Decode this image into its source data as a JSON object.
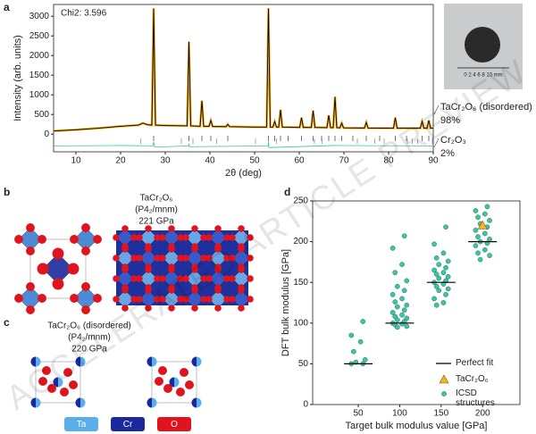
{
  "panel_labels": [
    "a",
    "b",
    "c",
    "d"
  ],
  "watermark": "ACCELERATED ARTICLE PREVIEW",
  "structure_b": {
    "formula": "TaCr₂O₆",
    "space_group": "(P4₂/mnm)",
    "modulus": "221 GPa"
  },
  "structure_c": {
    "formula": "TaCr₂O₆ (disordered)",
    "space_group": "(P4₂/mnm)",
    "modulus": "220 GPa"
  },
  "element_legend": [
    {
      "label": "Ta",
      "color": "#5aaeea"
    },
    {
      "label": "Cr",
      "color": "#1a2a9c"
    },
    {
      "label": "O",
      "color": "#e0141e"
    }
  ],
  "chart_data": [
    {
      "type": "line",
      "annotation": "Chi2: 3.596",
      "xlabel": "2θ (deg)",
      "ylabel": "Intensity (arb. units)",
      "xlim": [
        5,
        90
      ],
      "ylim": [
        -450,
        3300
      ],
      "xticks": [
        10,
        20,
        30,
        40,
        50,
        60,
        70,
        80,
        90
      ],
      "yticks": [
        0,
        500,
        1000,
        1500,
        2000,
        2500,
        3000
      ],
      "series": [
        {
          "color": "#000000",
          "x": [
            5,
            10,
            15,
            20,
            24,
            25,
            26,
            27,
            27.4,
            27.8,
            30,
            34.9,
            35.3,
            35.7,
            37.8,
            38.2,
            38.6,
            39.8,
            40.2,
            40.6,
            43.6,
            44,
            44.4,
            50,
            52.7,
            53.1,
            53.5,
            54.1,
            54.5,
            54.9,
            55.4,
            55.8,
            56.2,
            60.1,
            60.5,
            60.9,
            62.7,
            63.1,
            63.5,
            66.2,
            66.6,
            67,
            67.6,
            68,
            68.4,
            69.1,
            69.5,
            69.9,
            74.6,
            75,
            75.4,
            81.1,
            81.5,
            81.9,
            87.1,
            87.5,
            87.9,
            88.6,
            89,
            89.4,
            90
          ],
          "values": [
            80,
            110,
            150,
            200,
            230,
            280,
            240,
            230,
            3200,
            230,
            220,
            210,
            2350,
            210,
            200,
            850,
            200,
            200,
            350,
            195,
            190,
            250,
            190,
            180,
            180,
            3200,
            180,
            180,
            320,
            180,
            180,
            620,
            180,
            170,
            420,
            170,
            170,
            600,
            170,
            165,
            480,
            165,
            165,
            950,
            165,
            160,
            280,
            160,
            155,
            300,
            155,
            150,
            420,
            150,
            150,
            320,
            150,
            150,
            350,
            150,
            150
          ]
        },
        {
          "color": "#3cc2a3",
          "x": [
            5,
            20,
            27.2,
            27.4,
            27.6,
            35.2,
            35.3,
            35.4,
            53,
            53.1,
            53.2,
            68,
            90
          ],
          "values": [
            -300,
            -290,
            -300,
            -200,
            -330,
            -300,
            -240,
            -320,
            -300,
            -190,
            -340,
            -290,
            -300
          ]
        }
      ],
      "reflections": [
        {
          "color": "#666666",
          "y": -110,
          "x": [
            27.4,
            35.3,
            38.2,
            40.2,
            44,
            53.1,
            54.5,
            55.8,
            57.5,
            60.5,
            63.1,
            65,
            66.6,
            68,
            69.5,
            72,
            75,
            78,
            81.5,
            84,
            87.5,
            89
          ]
        },
        {
          "color": "#b48cc8",
          "y": -180,
          "x": [
            24.5,
            33.6,
            36.2,
            41.5,
            50.2,
            54.9,
            63.4,
            65.1,
            73,
            76.9,
            79,
            84.2,
            85.3,
            86.5,
            89.8
          ]
        }
      ],
      "phases": [
        {
          "name": "TaCr₂O₆ (disordered)",
          "fraction": "98%"
        },
        {
          "name": "Cr₂O₃",
          "fraction": "2%"
        }
      ],
      "inset_scale": "0 2 4 6 8 10 mm"
    },
    {
      "type": "scatter",
      "xlabel": "Target bulk modulus value [GPa]",
      "ylabel": "DFT bulk modulus [GPa]",
      "xlim": [
        -5,
        245
      ],
      "ylim": [
        0,
        250
      ],
      "xticks": [
        50,
        100,
        150,
        200
      ],
      "yticks": [
        0,
        50,
        100,
        150,
        200,
        250
      ],
      "series": [
        {
          "name": "Perfect fit",
          "kind": "line",
          "color": "#000000",
          "x": [
            50,
            100,
            150,
            200
          ],
          "values": [
            50,
            100,
            150,
            200
          ]
        },
        {
          "name": "TaCr₂O₆",
          "kind": "triangle",
          "color": "#f5b325",
          "x": [
            200
          ],
          "values": [
            220
          ]
        },
        {
          "name": "ICSD structures",
          "kind": "dot",
          "color": "#40c4a4",
          "x": [
            50,
            50,
            50,
            50,
            50,
            50,
            50,
            50,
            100,
            100,
            100,
            100,
            100,
            100,
            100,
            100,
            100,
            100,
            100,
            100,
            100,
            100,
            100,
            100,
            100,
            100,
            100,
            100,
            100,
            100,
            100,
            100,
            150,
            150,
            150,
            150,
            150,
            150,
            150,
            150,
            150,
            150,
            150,
            150,
            150,
            150,
            150,
            150,
            150,
            150,
            150,
            150,
            150,
            150,
            200,
            200,
            200,
            200,
            200,
            200,
            200,
            200,
            200,
            200,
            200,
            200,
            200,
            200,
            200,
            200,
            200,
            200
          ],
          "values": [
            102,
            85,
            77,
            65,
            55,
            52,
            50,
            50,
            207,
            192,
            172,
            162,
            152,
            145,
            140,
            135,
            130,
            126,
            122,
            120,
            116,
            113,
            110,
            108,
            106,
            104,
            102,
            100,
            99,
            98,
            96,
            95,
            218,
            197,
            186,
            180,
            176,
            172,
            168,
            165,
            162,
            160,
            157,
            155,
            152,
            150,
            148,
            145,
            142,
            140,
            135,
            130,
            125,
            122,
            243,
            238,
            234,
            230,
            226,
            222,
            218,
            214,
            210,
            206,
            203,
            200,
            198,
            195,
            190,
            186,
            183,
            178
          ]
        }
      ]
    }
  ]
}
